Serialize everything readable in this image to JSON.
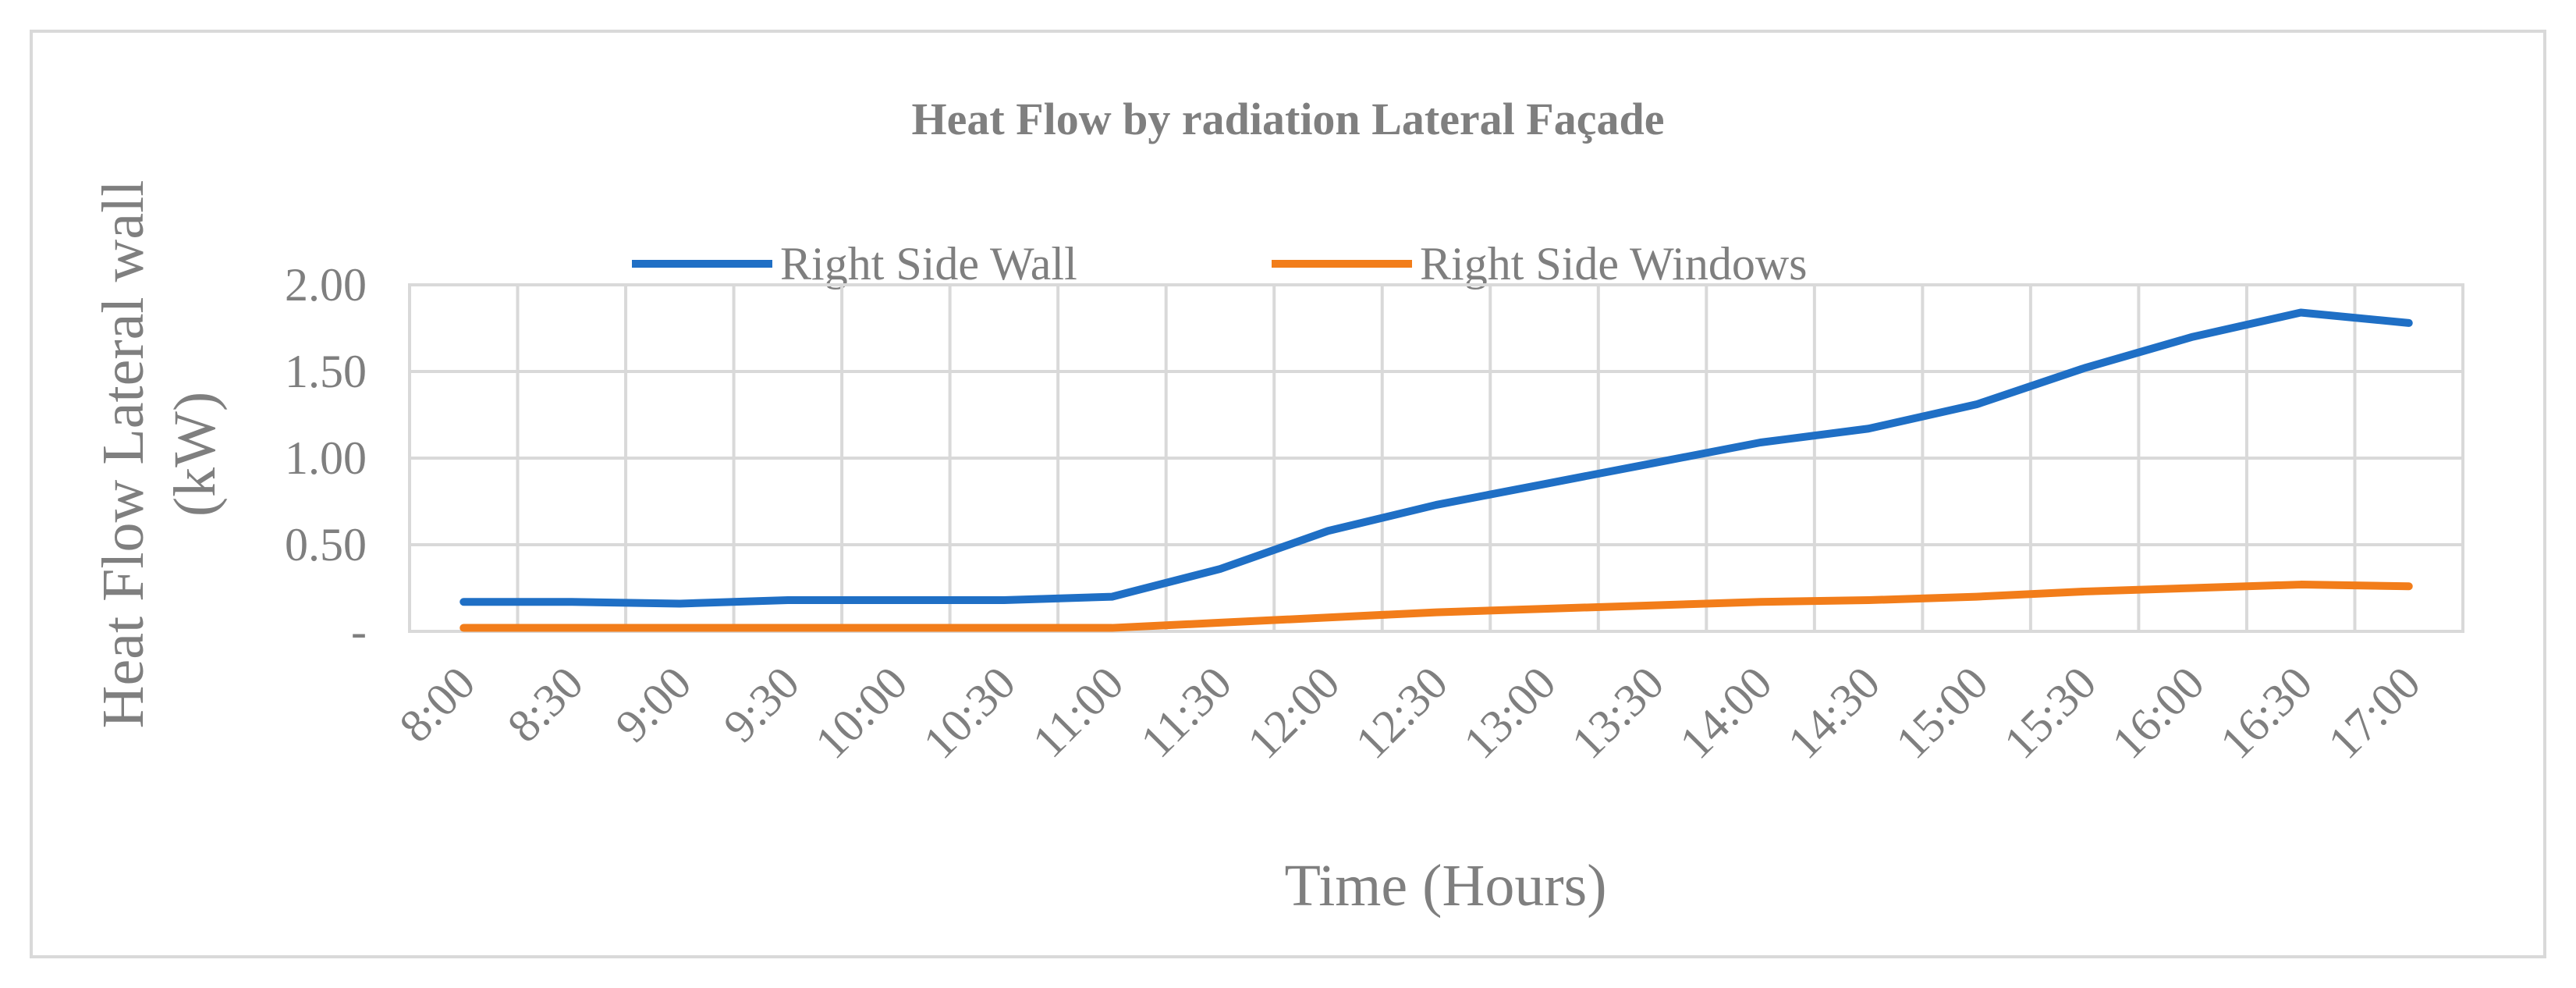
{
  "chart_data": {
    "type": "line",
    "title": "Heat Flow by radiation Lateral Façade",
    "xlabel": "Time (Hours)",
    "ylabel_lines": [
      "Heat Flow Lateral wall",
      "(kW)"
    ],
    "categories": [
      "8:00",
      "8:30",
      "9:00",
      "9:30",
      "10:00",
      "10:30",
      "11:00",
      "11:30",
      "12:00",
      "12:30",
      "13:00",
      "13:30",
      "14:00",
      "14:30",
      "15:00",
      "15:30",
      "16:00",
      "16:30",
      "17:00"
    ],
    "ylim": [
      0,
      2
    ],
    "yticks": [
      0,
      0.5,
      1.0,
      1.5,
      2.0
    ],
    "ytick_labels": [
      "-",
      "0.50",
      "1.00",
      "1.50",
      "2.00"
    ],
    "grid": true,
    "legend_position": "top",
    "series": [
      {
        "name": "Right Side Wall",
        "color": "#1f6fc5",
        "values": [
          0.17,
          0.17,
          0.16,
          0.18,
          0.18,
          0.18,
          0.2,
          0.36,
          0.58,
          0.73,
          0.85,
          0.97,
          1.09,
          1.17,
          1.31,
          1.52,
          1.7,
          1.84,
          1.78
        ]
      },
      {
        "name": "Right Side Windows",
        "color": "#f27d1a",
        "values": [
          0.02,
          0.02,
          0.02,
          0.02,
          0.02,
          0.02,
          0.02,
          0.05,
          0.08,
          0.11,
          0.13,
          0.15,
          0.17,
          0.18,
          0.2,
          0.23,
          0.25,
          0.27,
          0.26
        ]
      }
    ]
  }
}
